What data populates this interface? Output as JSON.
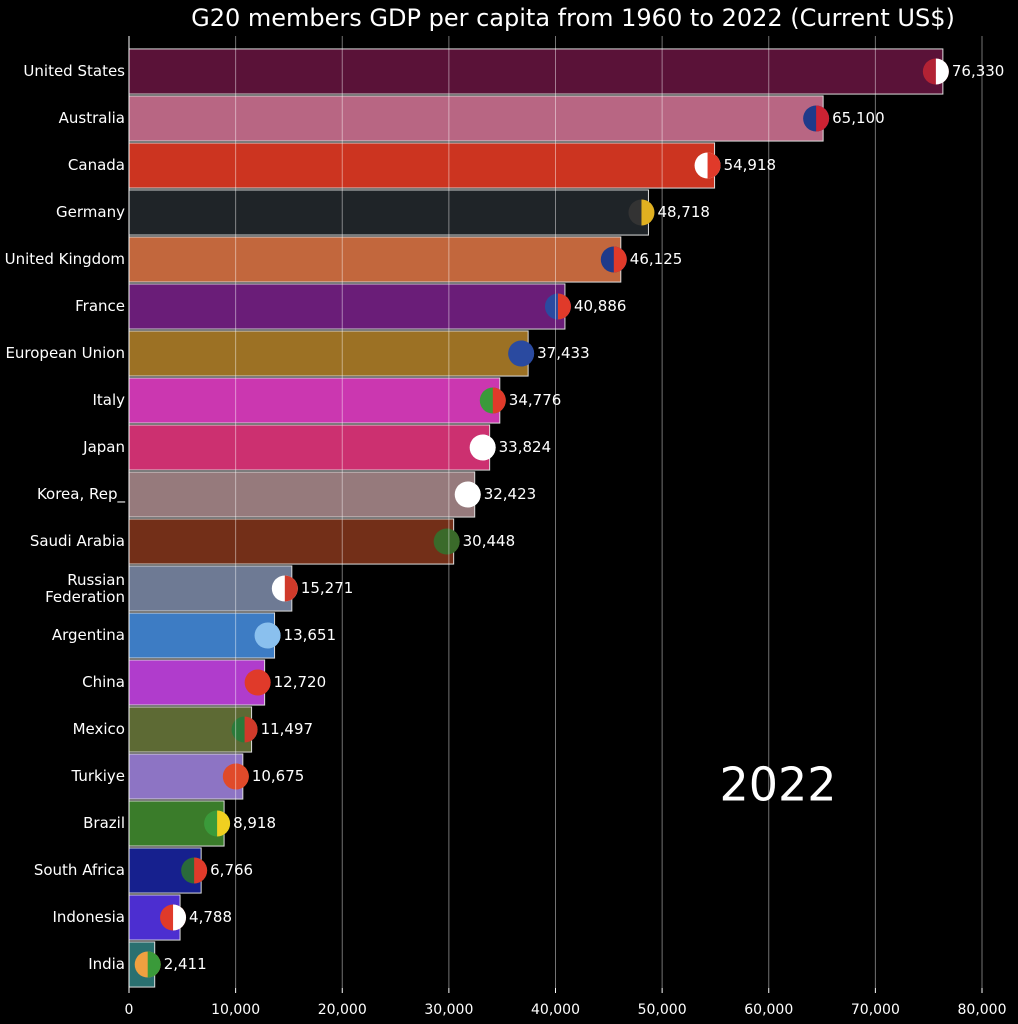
{
  "chart_data": {
    "type": "bar",
    "orientation": "horizontal",
    "title": "G20 members GDP per capita from 1960 to 2022 (Current US$)",
    "annotation": "2022",
    "categories": [
      "United States",
      "Australia",
      "Canada",
      "Germany",
      "United Kingdom",
      "France",
      "European Union",
      "Italy",
      "Japan",
      "Korea, Rep_",
      "Saudi Arabia",
      "Russian\nFederation",
      "Argentina",
      "China",
      "Mexico",
      "Turkiye",
      "Brazil",
      "South Africa",
      "Indonesia",
      "India"
    ],
    "values": [
      76330,
      65100,
      54918,
      48718,
      46125,
      40886,
      37433,
      34776,
      33824,
      32423,
      30448,
      15271,
      13651,
      12720,
      11497,
      10675,
      8918,
      6766,
      4788,
      2411
    ],
    "value_labels": [
      "76,330",
      "65,100",
      "54,918",
      "48,718",
      "46,125",
      "40,886",
      "37,433",
      "34,776",
      "33,824",
      "32,423",
      "30,448",
      "15,271",
      "13,651",
      "12,720",
      "11,497",
      "10,675",
      "8,918",
      "6,766",
      "4,788",
      "2,411"
    ],
    "colors": [
      "#5a1238",
      "#b86683",
      "#cc3420",
      "#1f2428",
      "#c2673d",
      "#6a1d78",
      "#9c7124",
      "#cb37b0",
      "#cc3070",
      "#967a7c",
      "#732f18",
      "#6e7a94",
      "#3d7cc4",
      "#b03ccc",
      "#5d6a34",
      "#8d74c4",
      "#3a7c2a",
      "#16208e",
      "#4c2ed0",
      "#2a7070"
    ],
    "flag_colors": [
      [
        "#b22234",
        "#ffffff"
      ],
      [
        "#1f3a8a",
        "#cc2233"
      ],
      [
        "#ffffff",
        "#e03a2a"
      ],
      [
        "#333333",
        "#e0b020"
      ],
      [
        "#1f3a8a",
        "#e03a2a"
      ],
      [
        "#2a4aa0",
        "#e03a2a"
      ],
      [
        "#2a4aa0",
        "#2a4aa0"
      ],
      [
        "#3a9a3a",
        "#e03a2a"
      ],
      [
        "#ffffff",
        "#ffffff"
      ],
      [
        "#ffffff",
        "#ffffff"
      ],
      [
        "#3a6a2a",
        "#3a6a2a"
      ],
      [
        "#ffffff",
        "#d03a2a"
      ],
      [
        "#8ac0ee",
        "#8ac0ee"
      ],
      [
        "#e03a2a",
        "#e03a2a"
      ],
      [
        "#2a7a3a",
        "#d03a2a"
      ],
      [
        "#e04a2a",
        "#e04a2a"
      ],
      [
        "#3a9a3a",
        "#f0d020"
      ],
      [
        "#2a6a3a",
        "#e03a2a"
      ],
      [
        "#e03a2a",
        "#ffffff"
      ],
      [
        "#f0a040",
        "#3a9a3a"
      ]
    ],
    "xlim": [
      0,
      80000
    ],
    "xticks": [
      0,
      {
        "value": 10000,
        "label": "10,000"
      },
      {
        "value": 20000,
        "label": "20,000"
      },
      {
        "value": 30000,
        "label": "30,000"
      },
      {
        "value": 40000,
        "label": "40,000"
      },
      {
        "value": 50000,
        "label": "50,000"
      },
      {
        "value": 60000,
        "label": "60,000"
      },
      {
        "value": 70000,
        "label": "70,000"
      },
      {
        "value": 80000,
        "label": "80,000"
      }
    ],
    "grid": true
  }
}
